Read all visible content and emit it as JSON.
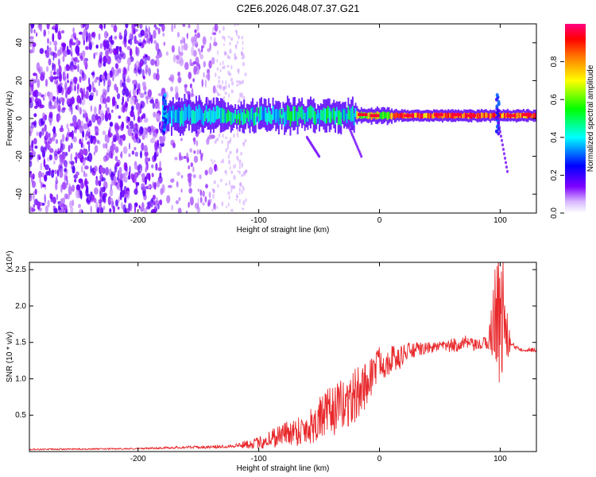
{
  "title": "C2E6.2026.048.07.37.G21",
  "chart_data": [
    {
      "type": "heatmap",
      "xlabel": "Height of straight line (km)",
      "ylabel": "Frequency (Hz)",
      "xlim": [
        -290,
        130
      ],
      "ylim": [
        -50,
        50
      ],
      "xticks": [
        -200,
        -100,
        0,
        100
      ],
      "yticks": [
        -40,
        -20,
        0,
        20,
        40
      ],
      "colorbar": {
        "label": "Normalized spectral amplitude",
        "range": [
          0,
          1
        ],
        "ticks": [
          "0.0",
          "0.2",
          "0.4",
          "0.6",
          "0.8"
        ],
        "colormap": [
          "#ffffff",
          "#7f00ff",
          "#0000ff",
          "#00ffff",
          "#00ff00",
          "#ffff00",
          "#ff7f00",
          "#ff0000",
          "#ff0080"
        ]
      },
      "features": {
        "noise_region_x": [
          -290,
          -135
        ],
        "band_center_hz": 1.5,
        "spikes_x_km": [
          -178,
          98
        ]
      }
    },
    {
      "type": "line",
      "xlabel": "Height of straight line (km)",
      "ylabel": "SNR (10 * v/v)",
      "multiplier": "(x10⁴)",
      "xlim": [
        -290,
        130
      ],
      "ylim": [
        0,
        2.6
      ],
      "xticks": [
        -200,
        -100,
        0,
        100
      ],
      "yticks": [
        "0.5",
        "1.0",
        "1.5",
        "2.0",
        "2.5"
      ],
      "series": [
        {
          "color": "#e8282b",
          "x": [
            -290,
            -200,
            -160,
            -140,
            -120,
            -100,
            -90,
            -80,
            -70,
            -60,
            -50,
            -40,
            -30,
            -20,
            -15,
            -10,
            -5,
            0,
            5,
            10,
            15,
            20,
            30,
            40,
            50,
            60,
            70,
            80,
            90,
            95,
            98,
            100,
            102,
            105,
            110,
            120,
            130
          ],
          "y": [
            0.03,
            0.04,
            0.06,
            0.06,
            0.08,
            0.12,
            0.18,
            0.25,
            0.28,
            0.32,
            0.45,
            0.55,
            0.65,
            0.75,
            0.85,
            0.95,
            1.1,
            1.25,
            1.2,
            1.3,
            1.25,
            1.35,
            1.4,
            1.42,
            1.45,
            1.45,
            1.5,
            1.45,
            1.5,
            1.8,
            2.2,
            1.5,
            2.0,
            1.6,
            1.45,
            1.4,
            1.4
          ],
          "noise": [
            0.01,
            0.01,
            0.02,
            0.02,
            0.03,
            0.08,
            0.15,
            0.15,
            0.2,
            0.25,
            0.3,
            0.35,
            0.35,
            0.4,
            0.35,
            0.3,
            0.3,
            0.2,
            0.2,
            0.2,
            0.15,
            0.15,
            0.1,
            0.08,
            0.06,
            0.1,
            0.1,
            0.08,
            0.1,
            0.6,
            1.0,
            1.2,
            0.8,
            0.4,
            0.05,
            0.03,
            0.03
          ]
        }
      ]
    }
  ]
}
